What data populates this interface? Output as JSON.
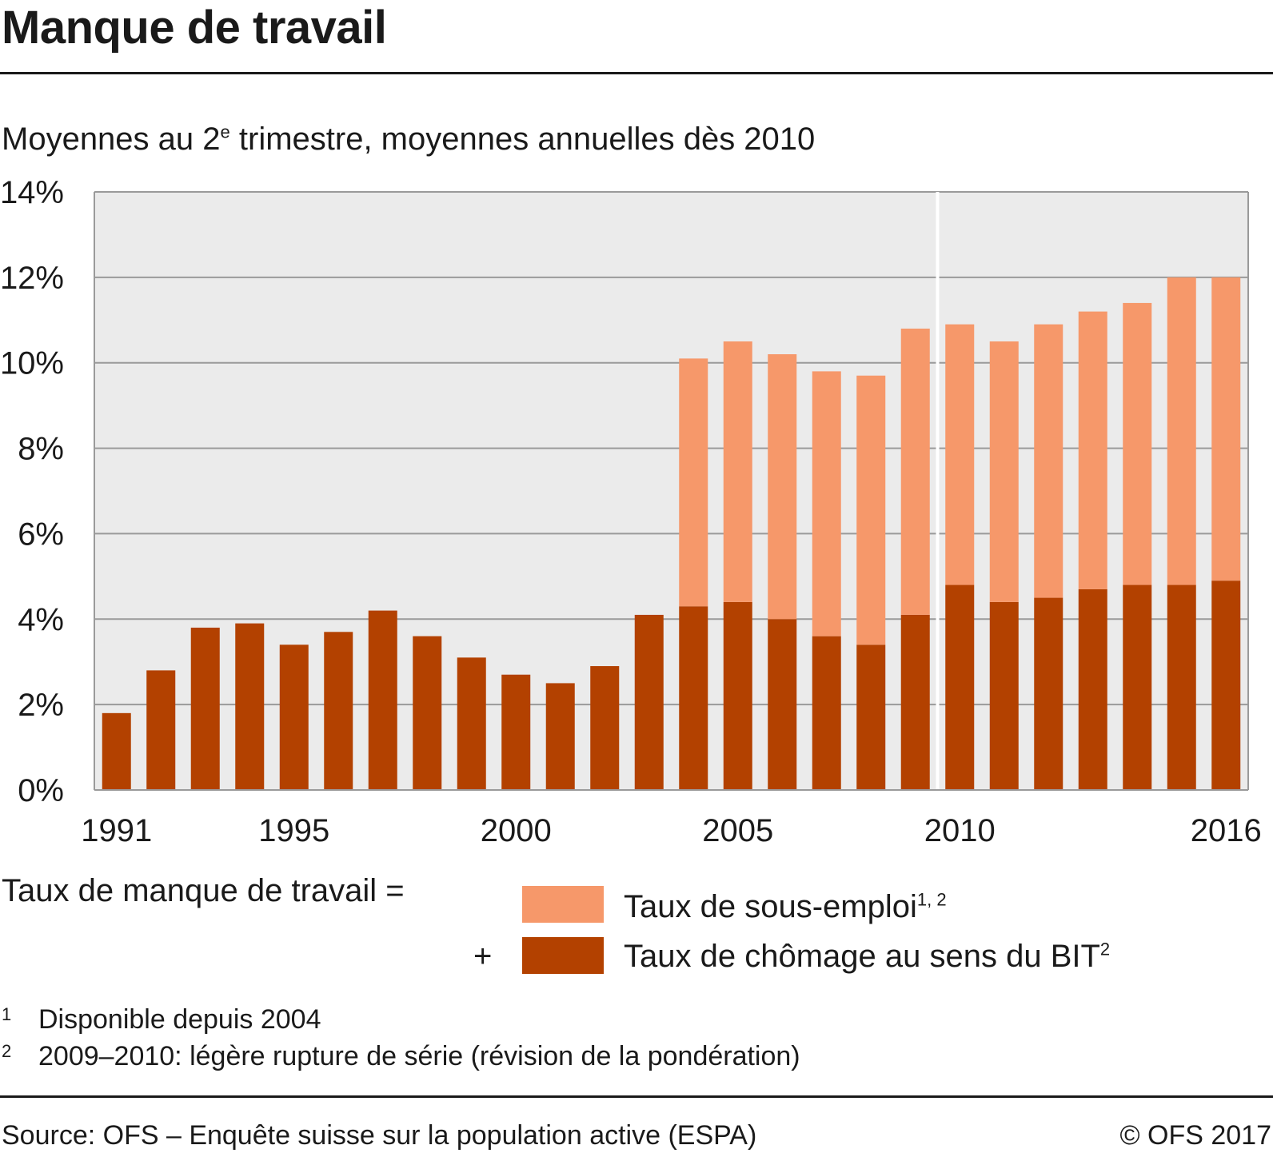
{
  "title": "Manque de travail",
  "subtitle": {
    "before": "Moyennes au 2",
    "sup": "e",
    "after": " trimestre, moyennes annuelles dès 2010"
  },
  "colors": {
    "underemployment": "#F6986A",
    "unemployment": "#B34100",
    "plot_background": "#EBEBEB",
    "gridline": "#9A9A9A",
    "break_line": "#FFFFFF"
  },
  "chart_data": {
    "type": "bar",
    "stacked": true,
    "categories": [
      "1991",
      "1992",
      "1993",
      "1994",
      "1995",
      "1996",
      "1997",
      "1998",
      "1999",
      "2000",
      "2001",
      "2002",
      "2003",
      "2004",
      "2005",
      "2006",
      "2007",
      "2008",
      "2009",
      "2010",
      "2011",
      "2012",
      "2013",
      "2014",
      "2015",
      "2016"
    ],
    "x_tick_labels": [
      "1991",
      "1995",
      "2000",
      "2005",
      "2010",
      "2016"
    ],
    "y_tick_labels": [
      "0%",
      "2%",
      "4%",
      "6%",
      "8%",
      "10%",
      "12%",
      "14%"
    ],
    "ylim": [
      0,
      14
    ],
    "grid": true,
    "series_break_between": [
      "2009",
      "2010"
    ],
    "series": [
      {
        "name": "Taux de chômage au sens du BIT",
        "color": "#B34100",
        "values": [
          1.8,
          2.8,
          3.8,
          3.9,
          3.4,
          3.7,
          4.2,
          3.6,
          3.1,
          2.7,
          2.5,
          2.9,
          4.1,
          4.3,
          4.4,
          4.0,
          3.6,
          3.4,
          4.1,
          4.8,
          4.4,
          4.5,
          4.7,
          4.8,
          4.8,
          4.9
        ]
      },
      {
        "name": "Taux de sous-emploi",
        "color": "#F6986A",
        "values": [
          0,
          0,
          0,
          0,
          0,
          0,
          0,
          0,
          0,
          0,
          0,
          0,
          0,
          5.8,
          6.1,
          6.2,
          6.2,
          6.3,
          6.7,
          6.1,
          6.1,
          6.4,
          6.5,
          6.6,
          7.2,
          7.1
        ]
      }
    ]
  },
  "legend": {
    "equation_label": "Taux de manque de travail =",
    "plus": "+",
    "under_label": "Taux de sous-emploi",
    "under_sup": "1, 2",
    "unemp_label": "Taux de chômage au sens du BIT",
    "unemp_sup": "2"
  },
  "footnotes": [
    {
      "num": "1",
      "text": "Disponible depuis 2004"
    },
    {
      "num": "2",
      "text": "2009–2010: légère rupture de série (révision de la pondération)"
    }
  ],
  "source": "Source: OFS – Enquête suisse sur la population active (ESPA)",
  "copyright": "© OFS 2017"
}
